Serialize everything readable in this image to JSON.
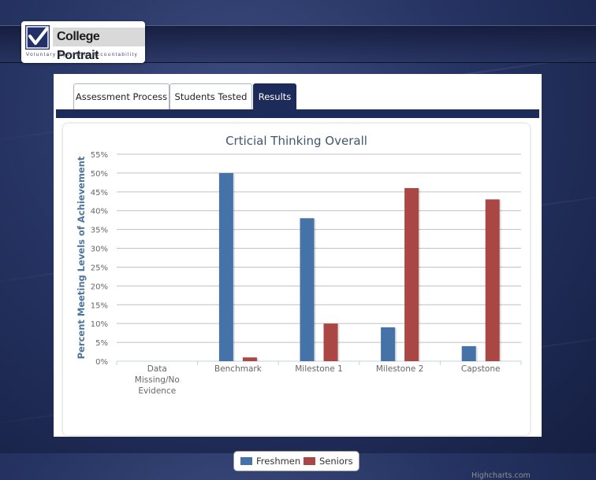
{
  "brand": {
    "title": "College Portrait",
    "subtitle": "Voluntary System of Accountability"
  },
  "tabs": [
    {
      "label": "Assessment Process",
      "active": false
    },
    {
      "label": "Students Tested",
      "active": false
    },
    {
      "label": "Results",
      "active": true
    }
  ],
  "colors": {
    "freshmen": "#4572A7",
    "seniors": "#AA4643",
    "accent": "#1c2b59"
  },
  "legend": {
    "freshmen": "Freshmen",
    "seniors": "Seniors"
  },
  "credits": "Highcharts.com",
  "chart_data": {
    "type": "bar",
    "title": "Crticial Thinking Overall",
    "ylabel": "Percent Meeting Levels of Achievement",
    "xlabel": "",
    "ylim": [
      0,
      55
    ],
    "yticks": [
      "0%",
      "5%",
      "10%",
      "15%",
      "20%",
      "25%",
      "30%",
      "35%",
      "40%",
      "45%",
      "50%",
      "55%"
    ],
    "grid": true,
    "legend_position": "bottom-center",
    "categories": [
      [
        "Data",
        "Missing/No",
        "Evidence"
      ],
      [
        "Benchmark"
      ],
      [
        "Milestone 1"
      ],
      [
        "Milestone 2"
      ],
      [
        "Capstone"
      ]
    ],
    "series": [
      {
        "name": "Freshmen",
        "values": [
          0,
          50,
          38,
          9,
          4
        ]
      },
      {
        "name": "Seniors",
        "values": [
          0,
          1,
          10,
          46,
          43
        ]
      }
    ]
  }
}
